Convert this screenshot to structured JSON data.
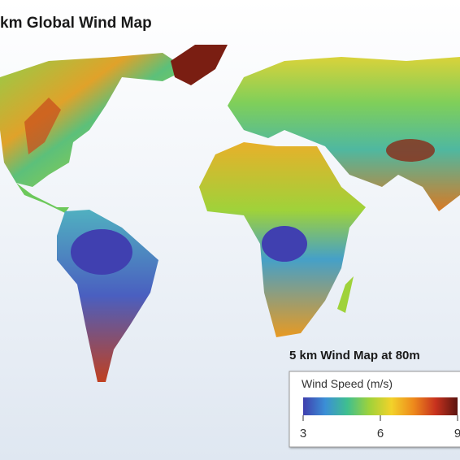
{
  "title": "km Global Wind Map",
  "legend": {
    "title": "5 km Wind Map at 80m",
    "label": "Wind Speed (m/s)",
    "range": [
      3,
      9
    ],
    "ticks": [
      3,
      6,
      9
    ],
    "colors": [
      "#3f3fae",
      "#3b8fd6",
      "#3fbf8f",
      "#9fd23a",
      "#f2d22a",
      "#ee8a1c",
      "#c8321e",
      "#5a1410"
    ]
  }
}
